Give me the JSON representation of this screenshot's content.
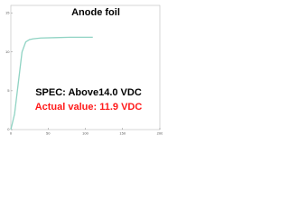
{
  "chart_data": {
    "type": "line",
    "title": "Anode foil",
    "annotations": [
      "SPEC: Above14.0 VDC",
      "Actual value: 11.9 VDC"
    ],
    "annotation_colors": [
      "#000000",
      "#ff1a1a"
    ],
    "x": [
      0,
      5,
      10,
      15,
      20,
      25,
      30,
      40,
      60,
      80,
      100,
      110
    ],
    "values": [
      0,
      2,
      6,
      10,
      11.3,
      11.6,
      11.7,
      11.8,
      11.85,
      11.9,
      11.9,
      11.9
    ],
    "color": "#8fd3c3",
    "xlim": [
      0,
      200
    ],
    "xticks": [
      0,
      50,
      100,
      150,
      200
    ],
    "ylim": [
      0,
      16
    ],
    "yticks": [
      0,
      5,
      10,
      15
    ]
  }
}
